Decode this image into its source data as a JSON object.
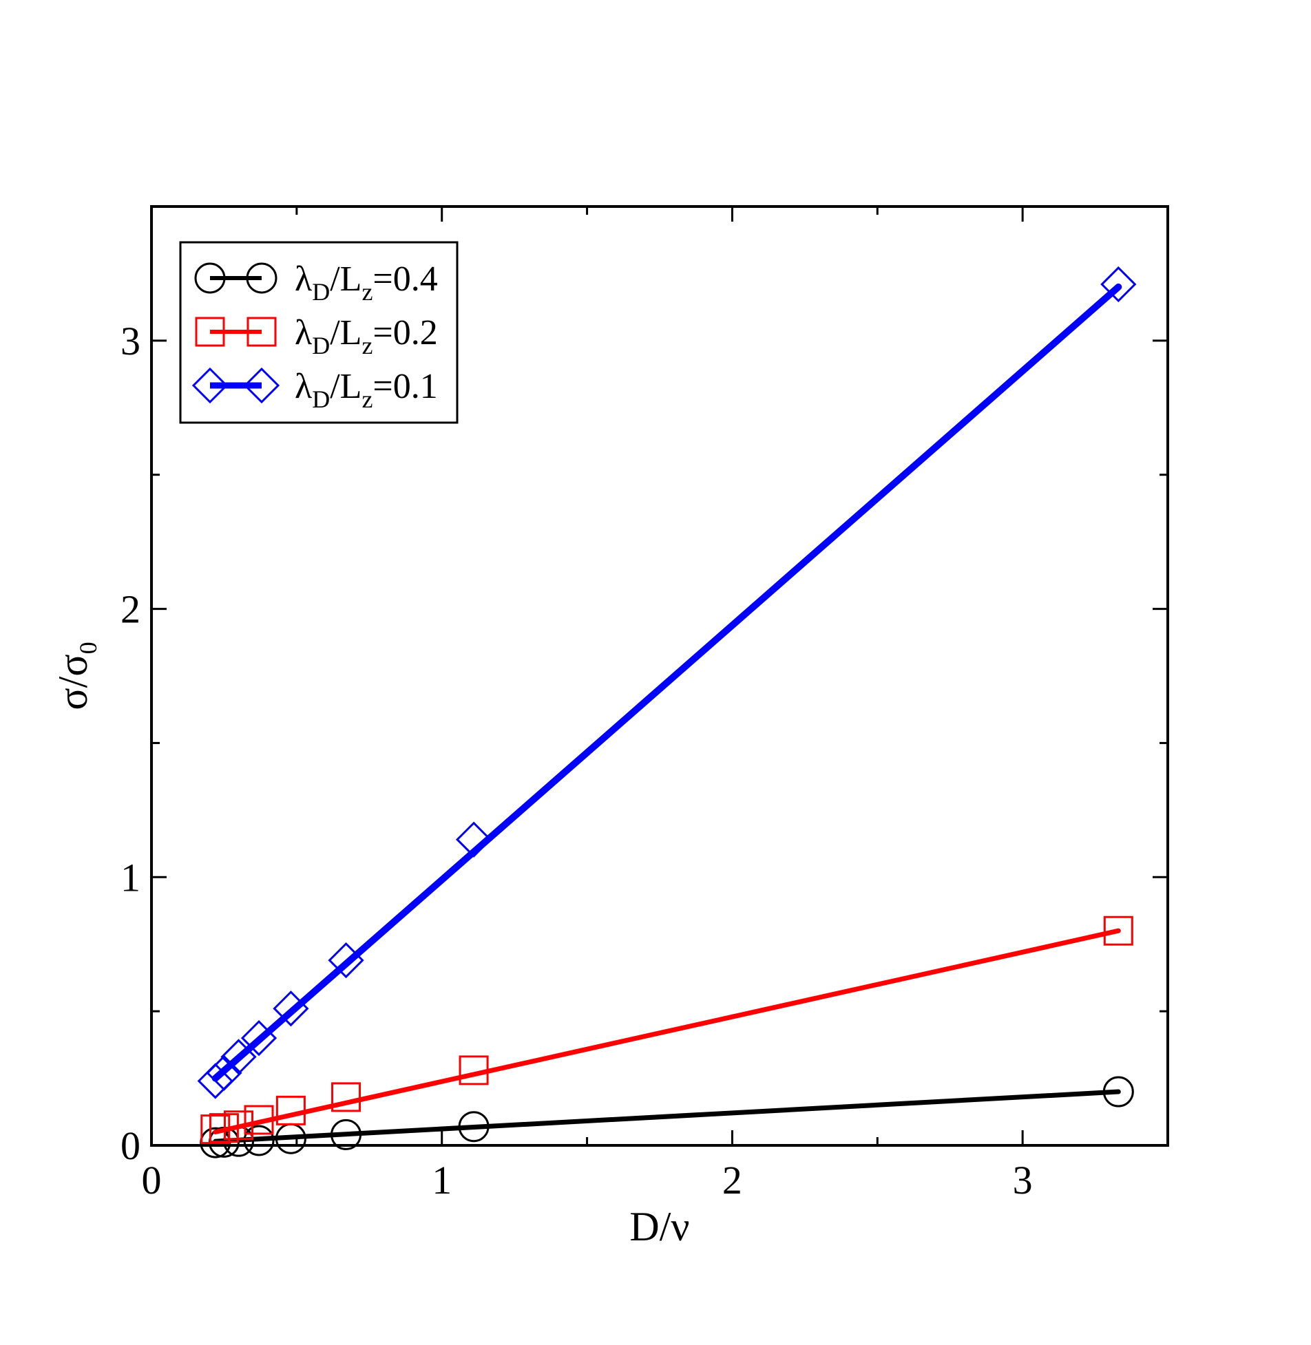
{
  "chart_data": {
    "type": "line",
    "xlabel": "D/ν",
    "ylabel": {
      "main": "σ/σ",
      "sub": "0"
    },
    "xlim": [
      0,
      3.5
    ],
    "ylim": [
      0,
      3.5
    ],
    "x_ticks": [
      "0",
      "1",
      "2",
      "3"
    ],
    "y_ticks": [
      "0",
      "1",
      "2",
      "3"
    ],
    "legend_position": "top-left",
    "series": [
      {
        "name": {
          "lambda": "λ",
          "lambda_sub": "D",
          "mid": "/L",
          "l_sub": "z",
          "tail": "=0.4"
        },
        "marker": "circle",
        "color": "#000000",
        "x": [
          0.22,
          0.25,
          0.3,
          0.37,
          0.48,
          0.67,
          1.11,
          3.33
        ],
        "y": [
          0.01,
          0.012,
          0.015,
          0.018,
          0.025,
          0.04,
          0.07,
          0.2
        ],
        "fit": [
          [
            0.22,
            0.015
          ],
          [
            3.33,
            0.2
          ]
        ]
      },
      {
        "name": {
          "lambda": "λ",
          "lambda_sub": "D",
          "mid": "/L",
          "l_sub": "z",
          "tail": "=0.2"
        },
        "marker": "square",
        "color": "#ff0000",
        "x": [
          0.22,
          0.25,
          0.3,
          0.37,
          0.48,
          0.67,
          1.11,
          3.33
        ],
        "y": [
          0.06,
          0.065,
          0.075,
          0.095,
          0.13,
          0.18,
          0.28,
          0.8
        ],
        "fit": [
          [
            0.22,
            0.05
          ],
          [
            3.33,
            0.8
          ]
        ]
      },
      {
        "name": {
          "lambda": "λ",
          "lambda_sub": "D",
          "mid": "/L",
          "l_sub": "z",
          "tail": "=0.1"
        },
        "marker": "diamond",
        "color": "#0000ff",
        "x": [
          0.22,
          0.25,
          0.3,
          0.37,
          0.48,
          0.67,
          1.11,
          3.33
        ],
        "y": [
          0.24,
          0.27,
          0.33,
          0.4,
          0.51,
          0.69,
          1.14,
          3.21
        ],
        "fit": [
          [
            0.22,
            0.25
          ],
          [
            3.33,
            3.2
          ]
        ]
      }
    ]
  }
}
